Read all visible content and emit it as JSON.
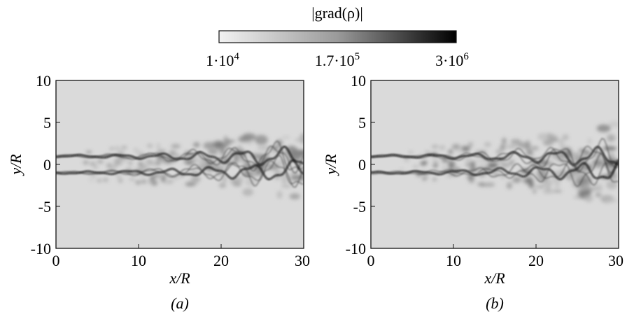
{
  "colorbar": {
    "title": "|grad(ρ)|",
    "tick_labels": [
      {
        "base": "1·10",
        "exp": "4"
      },
      {
        "base": "1.7·10",
        "exp": "5"
      },
      {
        "base": "3·10",
        "exp": "6"
      }
    ],
    "values": [
      10000,
      170000,
      3000000
    ],
    "scale": "log",
    "gradient": [
      "#f2f2f2",
      "#b3b3b3",
      "#000000"
    ]
  },
  "panels": [
    {
      "label": "(a)",
      "xlabel": "x/R",
      "ylabel": "y/R",
      "xticks": [
        "0",
        "10",
        "20",
        "30"
      ],
      "yticks": [
        "10",
        "5",
        "0",
        "-5",
        "-10"
      ],
      "xlim": [
        0,
        30
      ],
      "ylim": [
        -10,
        10
      ],
      "background": "#dadada"
    },
    {
      "label": "(b)",
      "xlabel": "x/R",
      "ylabel": "y/R",
      "xticks": [
        "0",
        "10",
        "20",
        "30"
      ],
      "yticks": [
        "10",
        "5",
        "0",
        "-5",
        "-10"
      ],
      "xlim": [
        0,
        30
      ],
      "ylim": [
        -10,
        10
      ],
      "background": "#dadada"
    }
  ]
}
